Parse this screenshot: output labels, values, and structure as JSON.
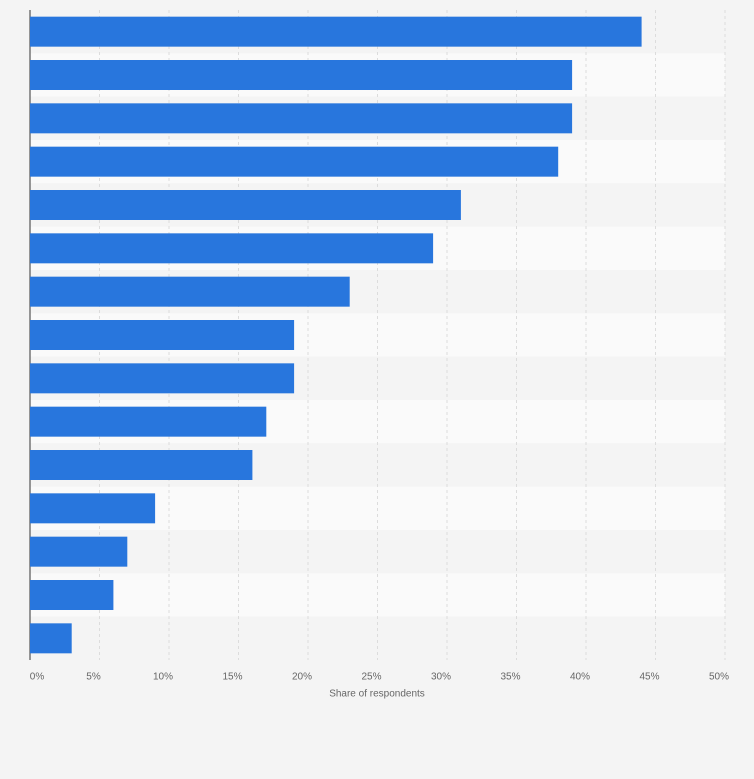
{
  "chart_data": {
    "type": "hbar",
    "categories": [
      null,
      null,
      null,
      null,
      null,
      null,
      null,
      null,
      null,
      null,
      null,
      null,
      null,
      null,
      null
    ],
    "values": [
      44,
      39,
      39,
      38,
      31,
      29,
      23,
      19,
      19,
      17,
      16,
      9,
      7,
      6,
      3
    ],
    "color": "#2876dd",
    "xlabel": "Share of respondents",
    "xlim": [
      0,
      50
    ],
    "xticks": [
      {
        "value": 0,
        "label": "0%"
      },
      {
        "value": 5,
        "label": "5%"
      },
      {
        "value": 10,
        "label": "10%"
      },
      {
        "value": 15,
        "label": "15%"
      },
      {
        "value": 20,
        "label": "20%"
      },
      {
        "value": 25,
        "label": "25%"
      },
      {
        "value": 30,
        "label": "30%"
      },
      {
        "value": 35,
        "label": "35%"
      },
      {
        "value": 40,
        "label": "40%"
      },
      {
        "value": 45,
        "label": "45%"
      },
      {
        "value": 50,
        "label": "50%"
      }
    ],
    "grid": true
  }
}
